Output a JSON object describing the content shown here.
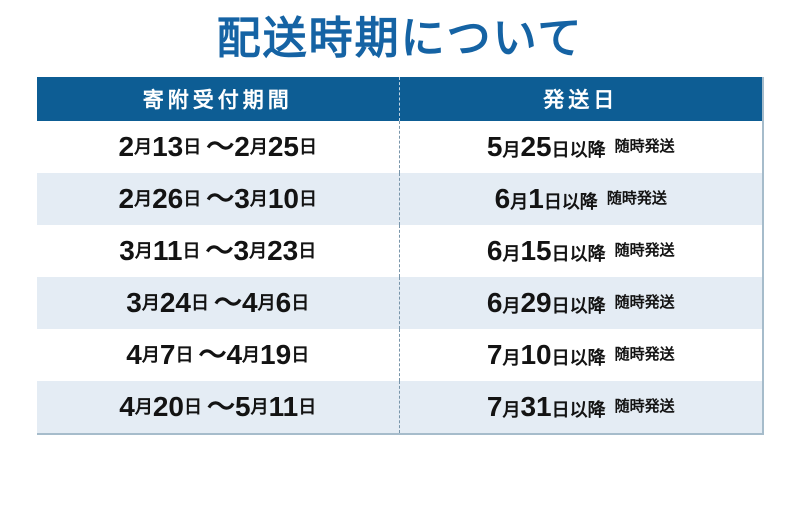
{
  "page": {
    "title": "配送時期について"
  },
  "table": {
    "headers": {
      "period": "寄附受付期間",
      "ship": "発送日"
    },
    "rows": [
      {
        "period": "2月13日 〜 2月25日",
        "ship_date": "5月25日以降",
        "ship_note": "随時発送"
      },
      {
        "period": "2月26日 〜 3月10日",
        "ship_date": "6月1日以降",
        "ship_note": "随時発送"
      },
      {
        "period": "3月11日 〜 3月23日",
        "ship_date": "6月15日以降",
        "ship_note": "随時発送"
      },
      {
        "period": "3月24日 〜 4月6日",
        "ship_date": "6月29日以降",
        "ship_note": "随時発送"
      },
      {
        "period": "4月7日 〜 4月19日",
        "ship_date": "7月10日以降",
        "ship_note": "随時発送"
      },
      {
        "period": "4月20日 〜 5月11日",
        "ship_date": "7月31日以降",
        "ship_note": "随時発送"
      }
    ]
  },
  "colors": {
    "title_text": "#1563a4",
    "header_bg": "#0d5d94",
    "header_text": "#ffffff",
    "row_alt_bg": "#e4ecf4",
    "row_text": "#131313",
    "divider": "#7895aa",
    "table_edge": "#a6bccb"
  }
}
